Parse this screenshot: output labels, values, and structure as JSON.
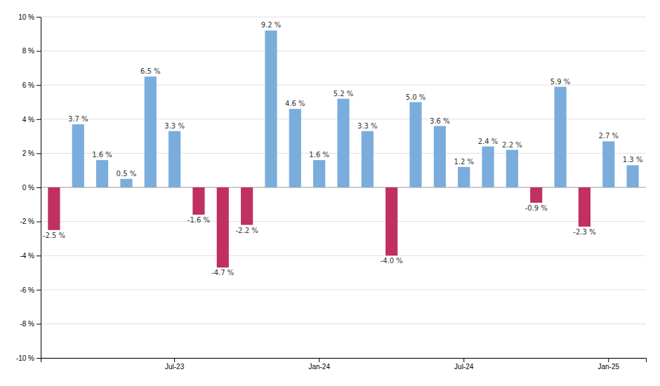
{
  "chart_data": {
    "type": "bar",
    "categories": [
      null,
      null,
      null,
      null,
      null,
      "Jul-23",
      null,
      null,
      null,
      null,
      null,
      "Jan-24",
      null,
      null,
      null,
      null,
      null,
      "Jul-24",
      null,
      null,
      null,
      null,
      null,
      "Jan-25",
      null
    ],
    "values": [
      -2.5,
      3.7,
      1.6,
      0.5,
      6.5,
      3.3,
      -1.6,
      -4.7,
      -2.2,
      9.2,
      4.6,
      1.6,
      5.2,
      3.3,
      -4.0,
      5.0,
      3.6,
      1.2,
      2.4,
      2.2,
      -0.9,
      5.9,
      -2.3,
      2.7,
      1.3
    ],
    "value_labels": [
      "-2.5 %",
      "3.7 %",
      "1.6 %",
      "0.5 %",
      "6.5 %",
      "3.3 %",
      "-1.6 %",
      "-4.7 %",
      "-2.2 %",
      "9.2 %",
      "4.6 %",
      "1.6 %",
      "5.2 %",
      "3.3 %",
      "-4.0 %",
      "5.0 %",
      "3.6 %",
      "1.2 %",
      "2.4 %",
      "2.2 %",
      "-0.9 %",
      "5.9 %",
      "-2.3 %",
      "2.7 %",
      "1.3 %"
    ],
    "colors": [
      "#c03060",
      "#7aaddc",
      "#7aaddc",
      "#7aaddc",
      "#7aaddc",
      "#7aaddc",
      "#c03060",
      "#c03060",
      "#c03060",
      "#7aaddc",
      "#7aaddc",
      "#7aaddc",
      "#7aaddc",
      "#7aaddc",
      "#c03060",
      "#7aaddc",
      "#7aaddc",
      "#7aaddc",
      "#7aaddc",
      "#7aaddc",
      "#c03060",
      "#7aaddc",
      "#c03060",
      "#7aaddc",
      "#7aaddc"
    ],
    "ylim": [
      -10,
      10
    ],
    "yticks": [
      {
        "value": -10,
        "label": "-10 %"
      },
      {
        "value": -8,
        "label": "-8 %"
      },
      {
        "value": -6,
        "label": "-6 %"
      },
      {
        "value": -4,
        "label": "-4 %"
      },
      {
        "value": -2,
        "label": "-2 %"
      },
      {
        "value": 0,
        "label": "0 %"
      },
      {
        "value": 2,
        "label": "2 %"
      },
      {
        "value": 4,
        "label": "4 %"
      },
      {
        "value": 6,
        "label": "6 %"
      },
      {
        "value": 8,
        "label": "8 %"
      },
      {
        "value": 10,
        "label": "10 %"
      }
    ],
    "grid": true,
    "data_labels": true
  }
}
